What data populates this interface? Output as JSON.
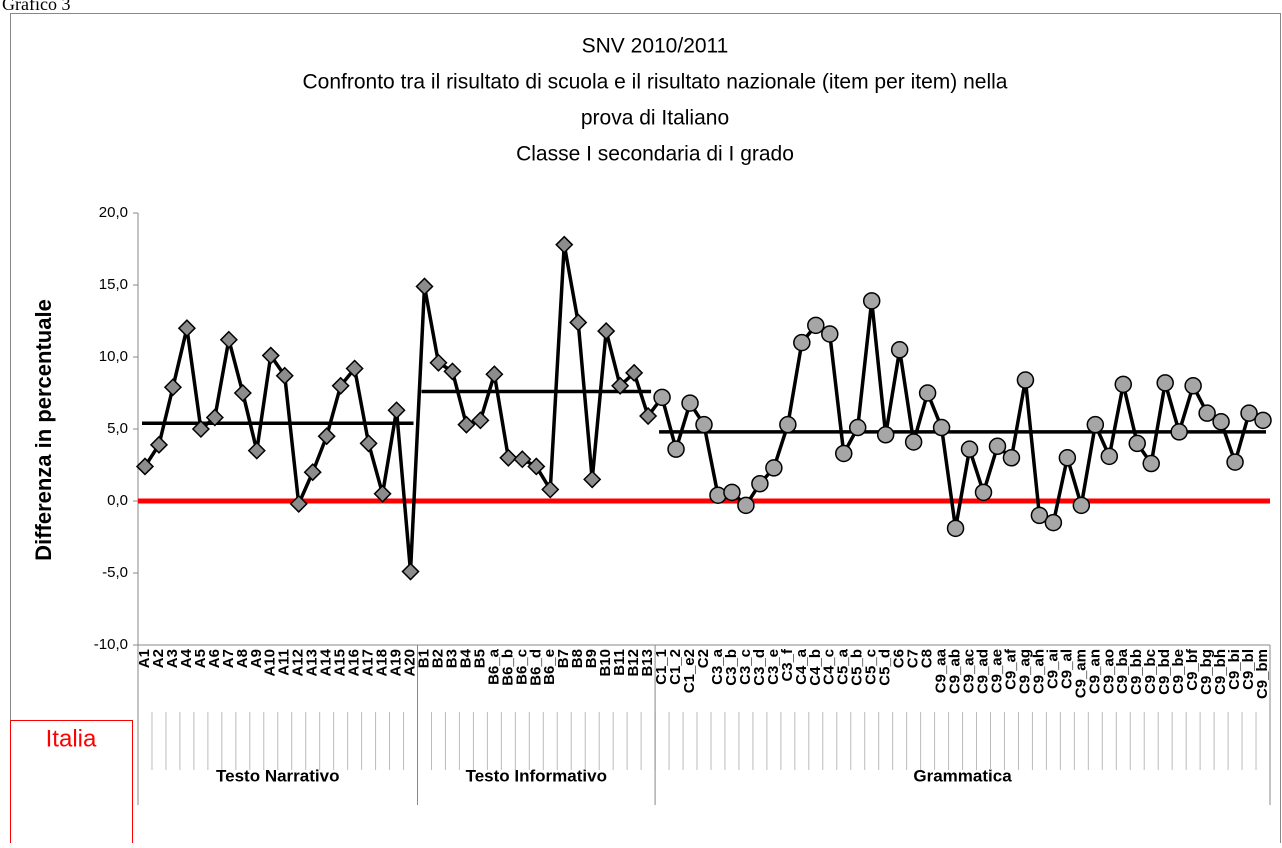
{
  "caption": "Grafico 3",
  "chart_data": {
    "type": "line",
    "title": [
      "SNV 2010/2011",
      "Confronto tra il risultato di scuola e il risultato nazionale (item per item) nella",
      "prova di Italiano",
      "Classe I secondaria di I grado"
    ],
    "ylabel": "Differenza in percentuale",
    "ylim": [
      -10,
      20
    ],
    "yticks": [
      {
        "value": -10,
        "label": "-10,0"
      },
      {
        "value": -5,
        "label": "-5,0"
      },
      {
        "value": 0,
        "label": "0,0"
      },
      {
        "value": 5,
        "label": "5,0"
      },
      {
        "value": 10,
        "label": "10,0"
      },
      {
        "value": 15,
        "label": "15,0"
      },
      {
        "value": 20,
        "label": "20,0"
      }
    ],
    "line_color": "#000000",
    "reference": {
      "name": "Italia",
      "value": 0,
      "color": "#ff0000"
    },
    "groups": [
      {
        "name": "Testo Narrativo",
        "marker": "diamond",
        "marker_color": "#8c8c8c",
        "mean": 5.4,
        "categories": [
          "A1",
          "A2",
          "A3",
          "A4",
          "A5",
          "A6",
          "A7",
          "A8",
          "A9",
          "A10",
          "A11",
          "A12",
          "A13",
          "A14",
          "A15",
          "A16",
          "A17",
          "A18",
          "A19",
          "A20"
        ],
        "values": [
          2.4,
          3.9,
          7.9,
          12.0,
          5.0,
          5.8,
          11.2,
          7.5,
          3.5,
          10.1,
          8.7,
          -0.2,
          2.0,
          4.5,
          8.0,
          9.2,
          4.0,
          0.5,
          6.3,
          -4.9
        ]
      },
      {
        "name": "Testo Informativo",
        "marker": "diamond",
        "marker_color": "#8c8c8c",
        "mean": 7.6,
        "categories": [
          "B1",
          "B2",
          "B3",
          "B4",
          "B5",
          "B6_a",
          "B6_b",
          "B6_c",
          "B6_d",
          "B6_e",
          "B7",
          "B8",
          "B9",
          "B10",
          "B11",
          "B12",
          "B13"
        ],
        "values": [
          14.9,
          9.6,
          9.0,
          5.3,
          5.6,
          8.8,
          3.0,
          2.9,
          2.4,
          0.8,
          17.8,
          12.4,
          1.5,
          11.8,
          8.0,
          8.9,
          5.9
        ]
      },
      {
        "name": "Grammatica",
        "marker": "circle",
        "marker_color": "#a6a6a6",
        "mean": 4.8,
        "categories": [
          "C1_1",
          "C1_2",
          "C1_e2",
          "C2",
          "C3_a",
          "C3_b",
          "C3_c",
          "C3_d",
          "C3_e",
          "C3_f",
          "C4_a",
          "C4_b",
          "C4_c",
          "C5_a",
          "C5_b",
          "C5_c",
          "C5_d",
          "C6",
          "C7",
          "C8",
          "C9_aa",
          "C9_ab",
          "C9_ac",
          "C9_ad",
          "C9_ae",
          "C9_af",
          "C9_ag",
          "C9_ah",
          "C9_ai",
          "C9_al",
          "C9_am",
          "C9_an",
          "C9_ao",
          "C9_ba",
          "C9_bb",
          "C9_bc",
          "C9_bd",
          "C9_be",
          "C9_bf",
          "C9_bg",
          "C9_bh",
          "C9_bi",
          "C9_bl",
          "C9_bm"
        ],
        "values": [
          7.2,
          3.6,
          6.8,
          5.3,
          0.4,
          0.6,
          -0.3,
          1.2,
          2.3,
          5.3,
          11.0,
          12.2,
          11.6,
          3.3,
          5.1,
          13.9,
          4.6,
          10.5,
          4.1,
          7.5,
          5.1,
          -1.9,
          3.6,
          0.6,
          3.8,
          3.0,
          8.4,
          -1.0,
          -1.5,
          3.0,
          -0.3,
          5.3,
          3.1,
          8.1,
          4.0,
          2.6,
          8.2,
          4.8,
          8.0,
          6.1,
          5.5,
          2.7,
          6.1,
          5.6
        ]
      }
    ]
  }
}
